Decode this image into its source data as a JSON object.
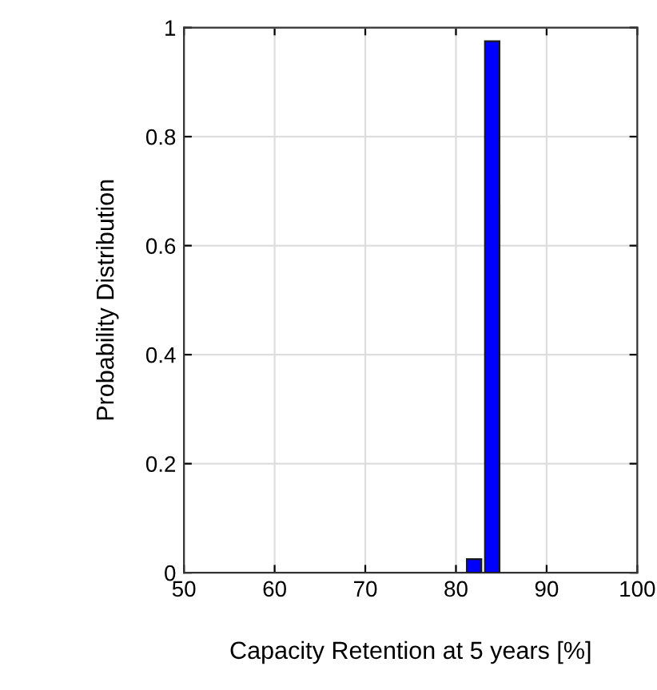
{
  "chart_data": {
    "type": "histogram",
    "xlabel": "Capacity Retention at 5 years [%]",
    "ylabel": "Probability Distribution",
    "bins": [
      81,
      83,
      85
    ],
    "values": [
      0.025,
      0.975
    ],
    "color": "#0000ff",
    "xlim": [
      50,
      100
    ],
    "xticks": [
      50,
      60,
      70,
      80,
      90,
      100
    ],
    "ylim": [
      0,
      1
    ],
    "yticks": [
      0,
      0.2,
      0.4,
      0.6,
      0.8,
      1
    ],
    "grid": true
  }
}
